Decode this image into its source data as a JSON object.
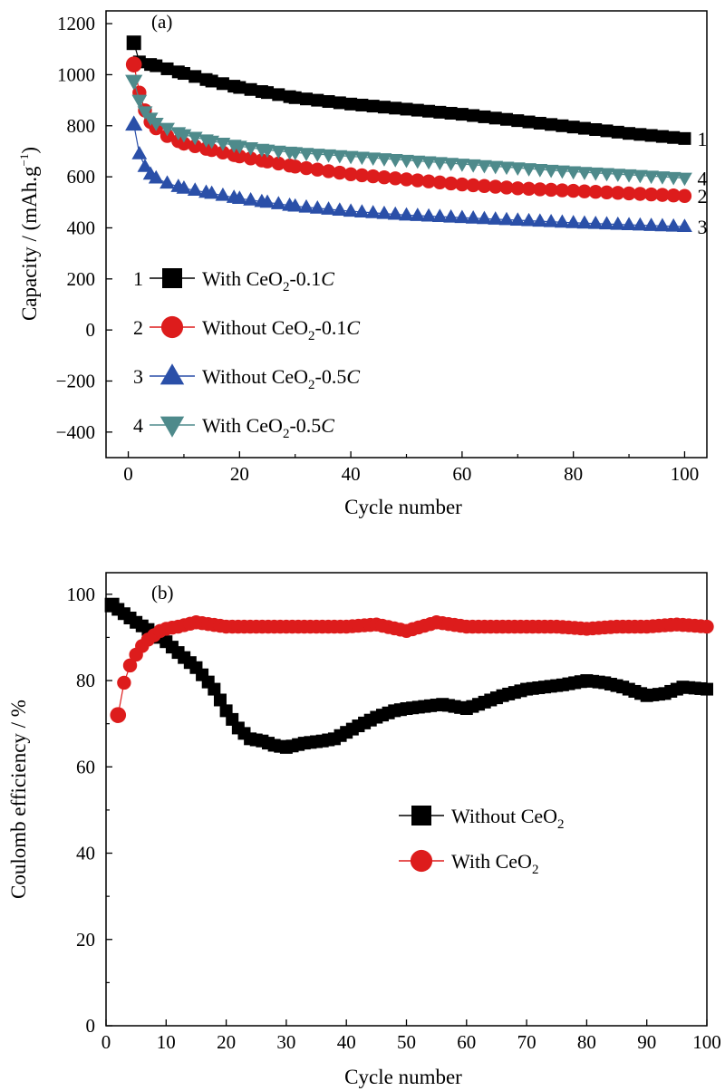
{
  "chart_data": [
    {
      "type": "scatter",
      "panel_label": "(a)",
      "xlabel": "Cycle number",
      "ylabel_main": "Capacity / (mAh.g",
      "ylabel_sup": "−1",
      "ylabel_close": ")",
      "xlim": [
        -4,
        104
      ],
      "ylim": [
        -500,
        1250
      ],
      "xticks": [
        "0",
        "20",
        "40",
        "60",
        "80",
        "100"
      ],
      "yticks": [
        "−400",
        "−200",
        "0",
        "200",
        "400",
        "600",
        "800",
        "1000",
        "1200"
      ],
      "legend_position": "lower-left",
      "series": [
        {
          "number": "1",
          "name_prefix": "With CeO",
          "name_sub": "2",
          "name_mid": "-0.1",
          "name_italic": "C",
          "end_label": "1",
          "color": "#000000",
          "marker": "square",
          "x": [
            1,
            2,
            5,
            10,
            15,
            20,
            25,
            30,
            40,
            50,
            60,
            70,
            80,
            90,
            100
          ],
          "y": [
            1125,
            1050,
            1035,
            1005,
            975,
            950,
            930,
            910,
            885,
            865,
            845,
            820,
            795,
            770,
            750
          ]
        },
        {
          "number": "2",
          "name_prefix": "Without CeO",
          "name_sub": "2",
          "name_mid": "-0.1",
          "name_italic": "C",
          "end_label": "2",
          "color": "#dd1c1c",
          "marker": "circle",
          "x": [
            1,
            2,
            3,
            4,
            5,
            7,
            10,
            15,
            20,
            25,
            30,
            40,
            50,
            60,
            70,
            80,
            90,
            100
          ],
          "y": [
            1040,
            930,
            860,
            815,
            790,
            760,
            730,
            705,
            680,
            660,
            640,
            610,
            590,
            570,
            555,
            545,
            535,
            525
          ]
        },
        {
          "number": "3",
          "name_prefix": "Without CeO",
          "name_sub": "2",
          "name_mid": "-0.5",
          "name_italic": "C",
          "end_label": "3",
          "color": "#2a4fa8",
          "marker": "triangle-up",
          "x": [
            1,
            2,
            3,
            4,
            5,
            7,
            10,
            15,
            20,
            25,
            30,
            40,
            50,
            60,
            70,
            80,
            90,
            100
          ],
          "y": [
            805,
            690,
            640,
            610,
            595,
            575,
            555,
            535,
            515,
            500,
            485,
            465,
            450,
            440,
            430,
            420,
            412,
            405
          ]
        },
        {
          "number": "4",
          "name_prefix": "With CeO",
          "name_sub": "2",
          "name_mid": "-0.5",
          "name_italic": "C",
          "end_label": "4",
          "color": "#4e8a8b",
          "marker": "triangle-down",
          "x": [
            1,
            2,
            3,
            4,
            5,
            7,
            10,
            15,
            20,
            25,
            30,
            40,
            50,
            60,
            70,
            80,
            90,
            100
          ],
          "y": [
            975,
            900,
            855,
            830,
            810,
            790,
            765,
            740,
            720,
            705,
            695,
            680,
            665,
            650,
            635,
            620,
            608,
            595
          ]
        }
      ]
    },
    {
      "type": "scatter",
      "panel_label": "(b)",
      "xlabel": "Cycle number",
      "ylabel": "Coulomb efficiency / %",
      "xlim": [
        0,
        100
      ],
      "ylim": [
        0,
        105
      ],
      "xticks": [
        "0",
        "10",
        "20",
        "30",
        "40",
        "50",
        "60",
        "70",
        "80",
        "90",
        "100"
      ],
      "yticks": [
        "0",
        "20",
        "40",
        "60",
        "80",
        "100"
      ],
      "legend_position": "center-right",
      "series": [
        {
          "name_prefix": "Without CeO",
          "name_sub": "2",
          "color": "#000000",
          "marker": "square",
          "x": [
            1,
            3,
            5,
            8,
            10,
            12,
            15,
            18,
            20,
            22,
            24,
            26,
            28,
            30,
            33,
            36,
            38,
            40,
            42,
            45,
            48,
            50,
            53,
            56,
            60,
            63,
            66,
            70,
            73,
            76,
            80,
            83,
            86,
            90,
            93,
            96,
            100
          ],
          "y": [
            97.5,
            95.5,
            93.5,
            91,
            89,
            86.5,
            83,
            78,
            73,
            69,
            66.5,
            66,
            65,
            64.5,
            65.5,
            66,
            66.5,
            68,
            69.5,
            71.5,
            73,
            73.5,
            74,
            74.5,
            73.5,
            75,
            76.5,
            78,
            78.5,
            79,
            80,
            79.5,
            78.5,
            76.5,
            77,
            78.5,
            78
          ]
        },
        {
          "name_prefix": "With CeO",
          "name_sub": "2",
          "color": "#dd1c1c",
          "marker": "circle",
          "x": [
            2,
            3,
            4,
            5,
            6,
            7,
            8,
            9,
            10,
            12,
            15,
            20,
            25,
            30,
            35,
            40,
            45,
            50,
            55,
            60,
            65,
            70,
            75,
            80,
            85,
            90,
            95,
            100
          ],
          "y": [
            72,
            79.5,
            83.5,
            86,
            88,
            89.5,
            90.5,
            91.5,
            92,
            92.5,
            93.5,
            92.5,
            92.5,
            92.5,
            92.5,
            92.5,
            93,
            91.5,
            93.5,
            92.5,
            92.5,
            92.5,
            92.5,
            92,
            92.5,
            92.5,
            93,
            92.5
          ]
        }
      ]
    }
  ]
}
